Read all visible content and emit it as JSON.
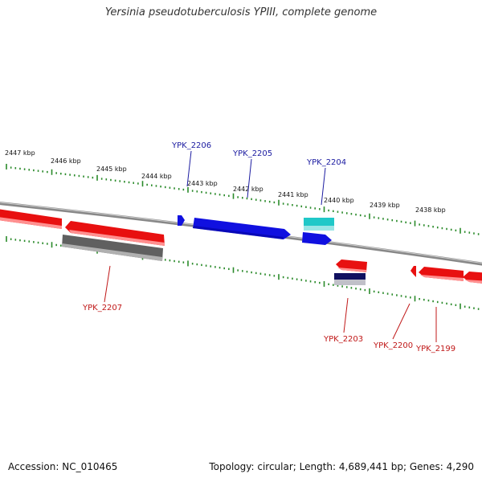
{
  "title": "Yersinia pseudotuberculosis YPIII, complete genome",
  "footer": {
    "accession": "Accession: NC_010465",
    "summary": "Topology: circular; Length: 4,689,441 bp; Genes: 4,290"
  },
  "colors": {
    "forward_gene": "#1010e0",
    "reverse_gene": "#e81010",
    "gray_feature": "#707070",
    "cyan_feature": "#20c8c8",
    "navy_feature": "#101060",
    "tick": "#2a8a2a",
    "backbone": "#888888",
    "forward_label": "#1a1aa0",
    "reverse_label": "#c01818"
  },
  "scale_labels": [
    "2447 kbp",
    "2446 kbp",
    "2445 kbp",
    "2444 kbp",
    "2443 kbp",
    "2442 kbp",
    "2441 kbp",
    "2440 kbp",
    "2439 kbp",
    "2438 kbp"
  ],
  "forward_labels": [
    "YPK_2206",
    "YPK_2205",
    "YPK_2204"
  ],
  "reverse_labels": [
    "YPK_2207",
    "YPK_2203",
    "YPK_2200",
    "YPK_2199"
  ]
}
